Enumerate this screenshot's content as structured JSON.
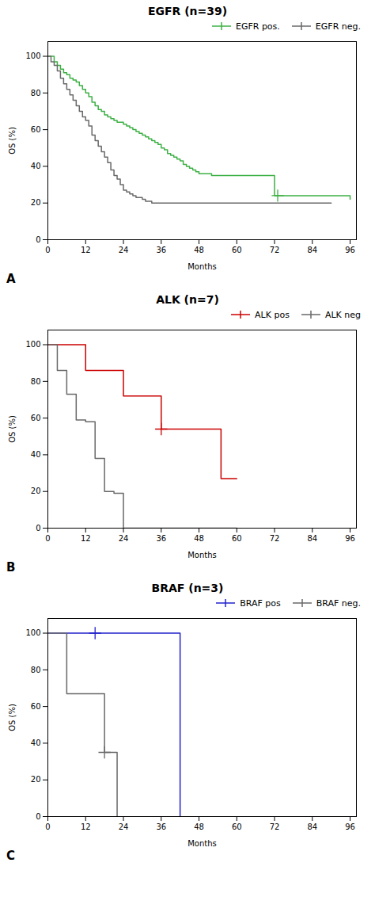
{
  "chart_data": [
    {
      "type": "step",
      "title": "EGFR (n=39)",
      "annotations": [
        "A"
      ],
      "x_label": "Months",
      "y_label": "OS (%)",
      "xlim": [
        0,
        98
      ],
      "ylim": [
        0,
        108
      ],
      "xticks": [
        0,
        12,
        24,
        36,
        48,
        60,
        72,
        84,
        96
      ],
      "yticks": [
        0,
        20,
        40,
        60,
        80,
        100
      ],
      "grid": false,
      "legend": "upper right",
      "series": [
        {
          "name": "EGFR pos.",
          "color": "#3cb043",
          "marker": "+",
          "x": [
            0,
            1,
            2,
            3,
            4,
            5,
            6,
            7,
            8,
            9,
            10,
            11,
            12,
            13,
            14,
            15,
            16,
            17,
            18,
            19,
            20,
            21,
            22,
            23,
            24,
            25,
            26,
            27,
            28,
            29,
            30,
            31,
            32,
            33,
            34,
            35,
            36,
            37,
            38,
            39,
            40,
            41,
            42,
            43,
            44,
            45,
            46,
            47,
            48,
            50,
            52,
            54,
            56,
            58,
            60,
            72,
            96
          ],
          "values": [
            100,
            100,
            97,
            95,
            93,
            91,
            90,
            88,
            87,
            86,
            84,
            82,
            80,
            78,
            75,
            73,
            71,
            70,
            68,
            67,
            66,
            65,
            64,
            64,
            63,
            62,
            61,
            60,
            59,
            58,
            57,
            56,
            55,
            54,
            53,
            52,
            50,
            49,
            47,
            46,
            45,
            44,
            43,
            41,
            40,
            39,
            38,
            37,
            36,
            36,
            35,
            35,
            35,
            35,
            35,
            24,
            22
          ],
          "censors": [
            [
              73,
              24
            ]
          ]
        },
        {
          "name": "EGFR neg.",
          "color": "#696969",
          "marker": "+",
          "x": [
            0,
            1,
            2,
            3,
            4,
            5,
            6,
            7,
            8,
            9,
            10,
            11,
            12,
            13,
            14,
            15,
            16,
            17,
            18,
            19,
            20,
            21,
            22,
            23,
            24,
            25,
            26,
            27,
            28,
            29,
            30,
            31,
            32,
            33,
            34,
            35,
            36,
            90
          ],
          "values": [
            100,
            97,
            95,
            92,
            88,
            85,
            82,
            79,
            76,
            73,
            70,
            67,
            65,
            62,
            57,
            54,
            51,
            48,
            45,
            42,
            38,
            35,
            33,
            30,
            27,
            26,
            25,
            24,
            23,
            23,
            22,
            21,
            21,
            20,
            20,
            20,
            20,
            20
          ],
          "censors": []
        }
      ]
    },
    {
      "type": "step",
      "title": "ALK (n=7)",
      "annotations": [
        "B"
      ],
      "x_label": "Months",
      "y_label": "OS (%)",
      "xlim": [
        0,
        98
      ],
      "ylim": [
        0,
        108
      ],
      "xticks": [
        0,
        12,
        24,
        36,
        48,
        60,
        72,
        84,
        96
      ],
      "yticks": [
        0,
        20,
        40,
        60,
        80,
        100
      ],
      "grid": false,
      "legend": "upper right",
      "series": [
        {
          "name": "ALK pos",
          "color": "#cc0000",
          "marker": "+",
          "x": [
            0,
            7,
            12,
            24,
            24,
            36,
            48,
            55,
            60
          ],
          "values": [
            100,
            100,
            86,
            86,
            72,
            54,
            54,
            27,
            27
          ],
          "censors": [
            [
              36,
              54
            ]
          ]
        },
        {
          "name": "ALK neg",
          "color": "#696969",
          "marker": "+",
          "x": [
            0,
            3,
            6,
            9,
            12,
            15,
            18,
            21,
            24,
            26,
            28,
            60
          ],
          "values": [
            100,
            86,
            73,
            59,
            58,
            38,
            20,
            19,
            0,
            0,
            0,
            0
          ],
          "censors": []
        }
      ]
    },
    {
      "type": "step",
      "title": "BRAF (n=3)",
      "annotations": [
        "C"
      ],
      "x_label": "Months",
      "y_label": "OS (%)",
      "xlim": [
        0,
        98
      ],
      "ylim": [
        0,
        108
      ],
      "xticks": [
        0,
        12,
        24,
        36,
        48,
        60,
        72,
        84,
        96
      ],
      "yticks": [
        0,
        20,
        40,
        60,
        80,
        100
      ],
      "grid": false,
      "legend": "upper right",
      "series": [
        {
          "name": "BRAF pos",
          "color": "#2222cc",
          "marker": "+",
          "x": [
            0,
            15,
            36,
            42,
            42
          ],
          "values": [
            100,
            100,
            100,
            50,
            0
          ],
          "censors": [
            [
              15,
              100
            ]
          ]
        },
        {
          "name": "BRAF neg.",
          "color": "#696969",
          "marker": "+",
          "x": [
            0,
            6,
            6,
            18,
            20,
            22
          ],
          "values": [
            100,
            67,
            67,
            35,
            35,
            0
          ],
          "censors": [
            [
              18,
              35
            ]
          ]
        }
      ]
    }
  ]
}
